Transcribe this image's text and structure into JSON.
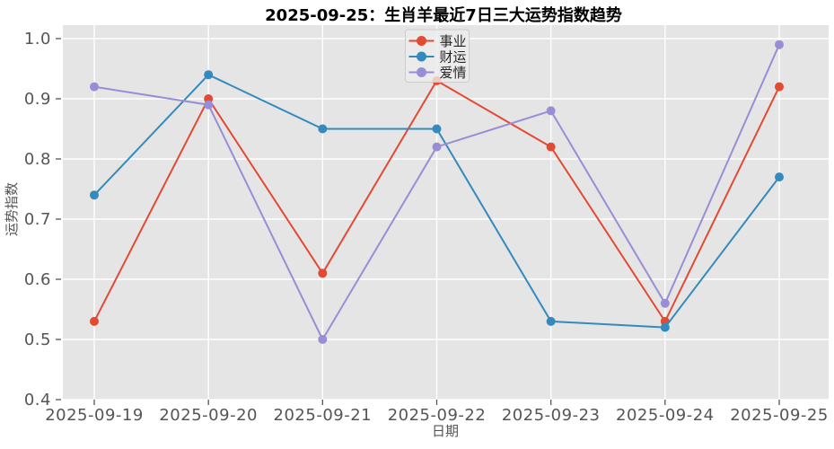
{
  "chart_data": {
    "type": "line",
    "title": "2025-09-25：生肖羊最近7日三大运势指数趋势",
    "xlabel": "日期",
    "ylabel": "运势指数",
    "categories": [
      "2025-09-19",
      "2025-09-20",
      "2025-09-21",
      "2025-09-22",
      "2025-09-23",
      "2025-09-24",
      "2025-09-25"
    ],
    "series": [
      {
        "name": "事业",
        "color": "#E24A33",
        "values": [
          0.53,
          0.9,
          0.61,
          0.93,
          0.82,
          0.53,
          0.92
        ]
      },
      {
        "name": "财运",
        "color": "#348ABD",
        "values": [
          0.74,
          0.94,
          0.85,
          0.85,
          0.53,
          0.52,
          0.77
        ]
      },
      {
        "name": "爱情",
        "color": "#988ED5",
        "values": [
          0.92,
          0.89,
          0.5,
          0.82,
          0.88,
          0.56,
          0.99
        ]
      }
    ],
    "ylim": [
      0.4,
      1.0
    ],
    "yticks": [
      0.4,
      0.5,
      0.6,
      0.7,
      0.8,
      0.9,
      1.0
    ],
    "ytick_labels": [
      "0.4",
      "0.5",
      "0.6",
      "0.7",
      "0.8",
      "0.9",
      "1.0"
    ],
    "grid": true,
    "legend_position": "top-center",
    "marker": "circle",
    "colors": {
      "figure_bg": "#FFFFFF",
      "plot_bg": "#E5E5E5",
      "grid": "#FFFFFF",
      "tick": "#555555",
      "title": "#000000",
      "legend_bg": "#ECECEC",
      "legend_border": "#CCCCCC"
    }
  }
}
